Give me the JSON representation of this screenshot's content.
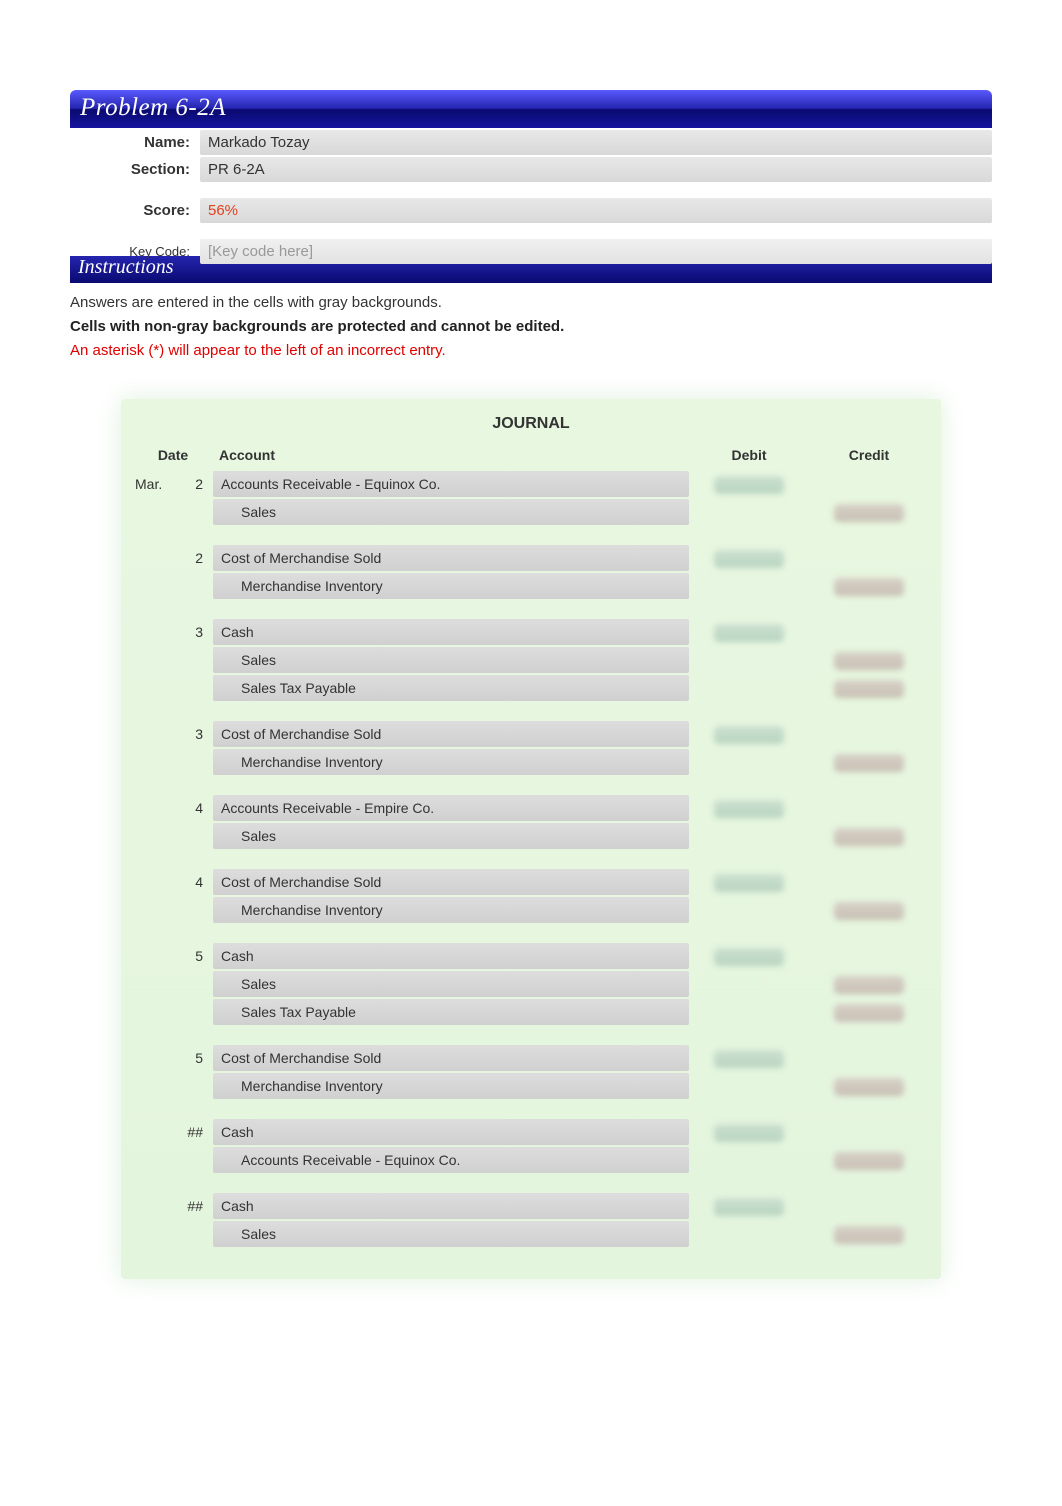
{
  "header": {
    "problem_title": "Problem 6-2A",
    "instructions_title": "Instructions",
    "fields": {
      "name_label": "Name:",
      "name_value": "Markado Tozay",
      "section_label": "Section:",
      "section_value": "PR 6-2A",
      "score_label": "Score:",
      "score_value": "56%",
      "keycode_label": "Key Code:",
      "keycode_value": "[Key code here]"
    },
    "instructions": {
      "line1": "Answers are entered in the cells with gray backgrounds.",
      "line2": "Cells with non-gray backgrounds are protected and cannot be edited.",
      "line3": "An asterisk (*) will appear to the left of an incorrect entry."
    }
  },
  "journal": {
    "title": "JOURNAL",
    "columns": {
      "date": "Date",
      "account": "Account",
      "debit": "Debit",
      "credit": "Credit"
    },
    "month": "Mar.",
    "entries": [
      {
        "day": "2",
        "show_month": true,
        "lines": [
          {
            "account": "Accounts Receivable - Equinox Co.",
            "indent": false,
            "debit": true,
            "credit": false
          },
          {
            "account": "Sales",
            "indent": true,
            "debit": false,
            "credit": true
          }
        ]
      },
      {
        "day": "2",
        "show_month": false,
        "lines": [
          {
            "account": "Cost of Merchandise Sold",
            "indent": false,
            "debit": true,
            "credit": false
          },
          {
            "account": "Merchandise Inventory",
            "indent": true,
            "debit": false,
            "credit": true
          }
        ]
      },
      {
        "day": "3",
        "show_month": false,
        "lines": [
          {
            "account": "Cash",
            "indent": false,
            "debit": true,
            "credit": false
          },
          {
            "account": "Sales",
            "indent": true,
            "debit": false,
            "credit": true
          },
          {
            "account": "Sales Tax Payable",
            "indent": true,
            "debit": false,
            "credit": true
          }
        ]
      },
      {
        "day": "3",
        "show_month": false,
        "lines": [
          {
            "account": "Cost of Merchandise Sold",
            "indent": false,
            "debit": true,
            "credit": false
          },
          {
            "account": "Merchandise Inventory",
            "indent": true,
            "debit": false,
            "credit": true
          }
        ]
      },
      {
        "day": "4",
        "show_month": false,
        "lines": [
          {
            "account": "Accounts Receivable - Empire Co.",
            "indent": false,
            "debit": true,
            "credit": false
          },
          {
            "account": "Sales",
            "indent": true,
            "debit": false,
            "credit": true
          }
        ]
      },
      {
        "day": "4",
        "show_month": false,
        "lines": [
          {
            "account": "Cost of Merchandise Sold",
            "indent": false,
            "debit": true,
            "credit": false
          },
          {
            "account": "Merchandise Inventory",
            "indent": true,
            "debit": false,
            "credit": true
          }
        ]
      },
      {
        "day": "5",
        "show_month": false,
        "lines": [
          {
            "account": "Cash",
            "indent": false,
            "debit": true,
            "credit": false
          },
          {
            "account": "Sales",
            "indent": true,
            "debit": false,
            "credit": true
          },
          {
            "account": "Sales Tax Payable",
            "indent": true,
            "debit": false,
            "credit": true
          }
        ]
      },
      {
        "day": "5",
        "show_month": false,
        "lines": [
          {
            "account": "Cost of Merchandise Sold",
            "indent": false,
            "debit": true,
            "credit": false
          },
          {
            "account": "Merchandise Inventory",
            "indent": true,
            "debit": false,
            "credit": true
          }
        ]
      },
      {
        "day": "##",
        "show_month": false,
        "lines": [
          {
            "account": "Cash",
            "indent": false,
            "debit": true,
            "credit": false
          },
          {
            "account": "Accounts Receivable - Equinox Co.",
            "indent": true,
            "debit": false,
            "credit": true
          }
        ]
      },
      {
        "day": "##",
        "show_month": false,
        "lines": [
          {
            "account": "Cash",
            "indent": false,
            "debit": true,
            "credit": false
          },
          {
            "account": "Sales",
            "indent": true,
            "debit": false,
            "credit": true
          }
        ]
      }
    ]
  },
  "style": {
    "title_bar_gradient": [
      "#5a5aff",
      "#2525b0",
      "#0a0a70",
      "#1414a0"
    ],
    "gray_cell_gradient": [
      "#e8e8e8",
      "#d8d8d8"
    ],
    "journal_bg": "#e8f7e0",
    "score_color": "#e04020",
    "error_text_color": "#e00000",
    "blur_debit_color": "#cce0d0",
    "blur_credit_color": "#d6d0c6",
    "font_family": "Arial",
    "title_font_family": "Times New Roman"
  }
}
